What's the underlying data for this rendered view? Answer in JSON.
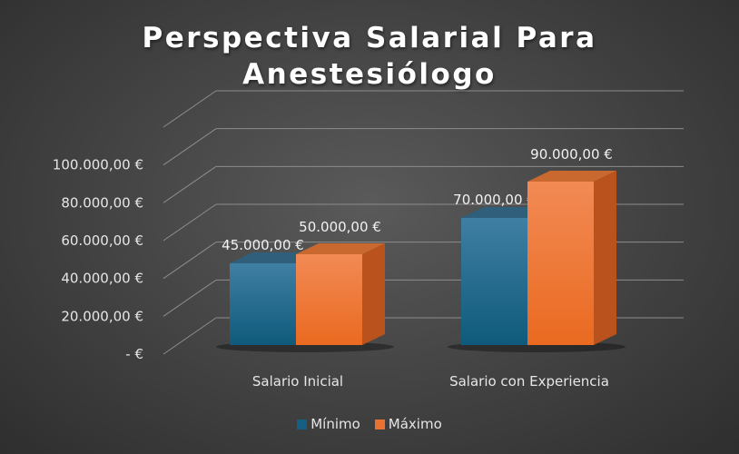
{
  "chart_data": {
    "type": "bar",
    "title": "Perspectiva Salarial Para Anestesiólogo",
    "title_lines": [
      "Perspectiva Salarial Para",
      "Anestesiólogo"
    ],
    "categories": [
      "Salario Inicial",
      "Salario con Experiencia"
    ],
    "series": [
      {
        "name": "Mínimo",
        "values": [
          45000,
          70000
        ],
        "labels": [
          "45.000,00 €",
          "70.000,00 €"
        ],
        "color": "#156082"
      },
      {
        "name": "Máximo",
        "values": [
          50000,
          90000
        ],
        "labels": [
          "50.000,00 €",
          "90.000,00 €"
        ],
        "color": "#e97132"
      }
    ],
    "y_ticks": [
      0,
      20000,
      40000,
      60000,
      80000,
      100000
    ],
    "y_tick_labels": [
      "-  €",
      "20.000,00 €",
      "40.000,00 €",
      "60.000,00 €",
      "80.000,00 €",
      "100.000,00 €"
    ],
    "ylim": [
      0,
      120000
    ],
    "xlabel": "",
    "ylabel": "",
    "grid": true,
    "legend_position": "bottom",
    "style": "3d-clustered-column",
    "background": "#464646"
  }
}
